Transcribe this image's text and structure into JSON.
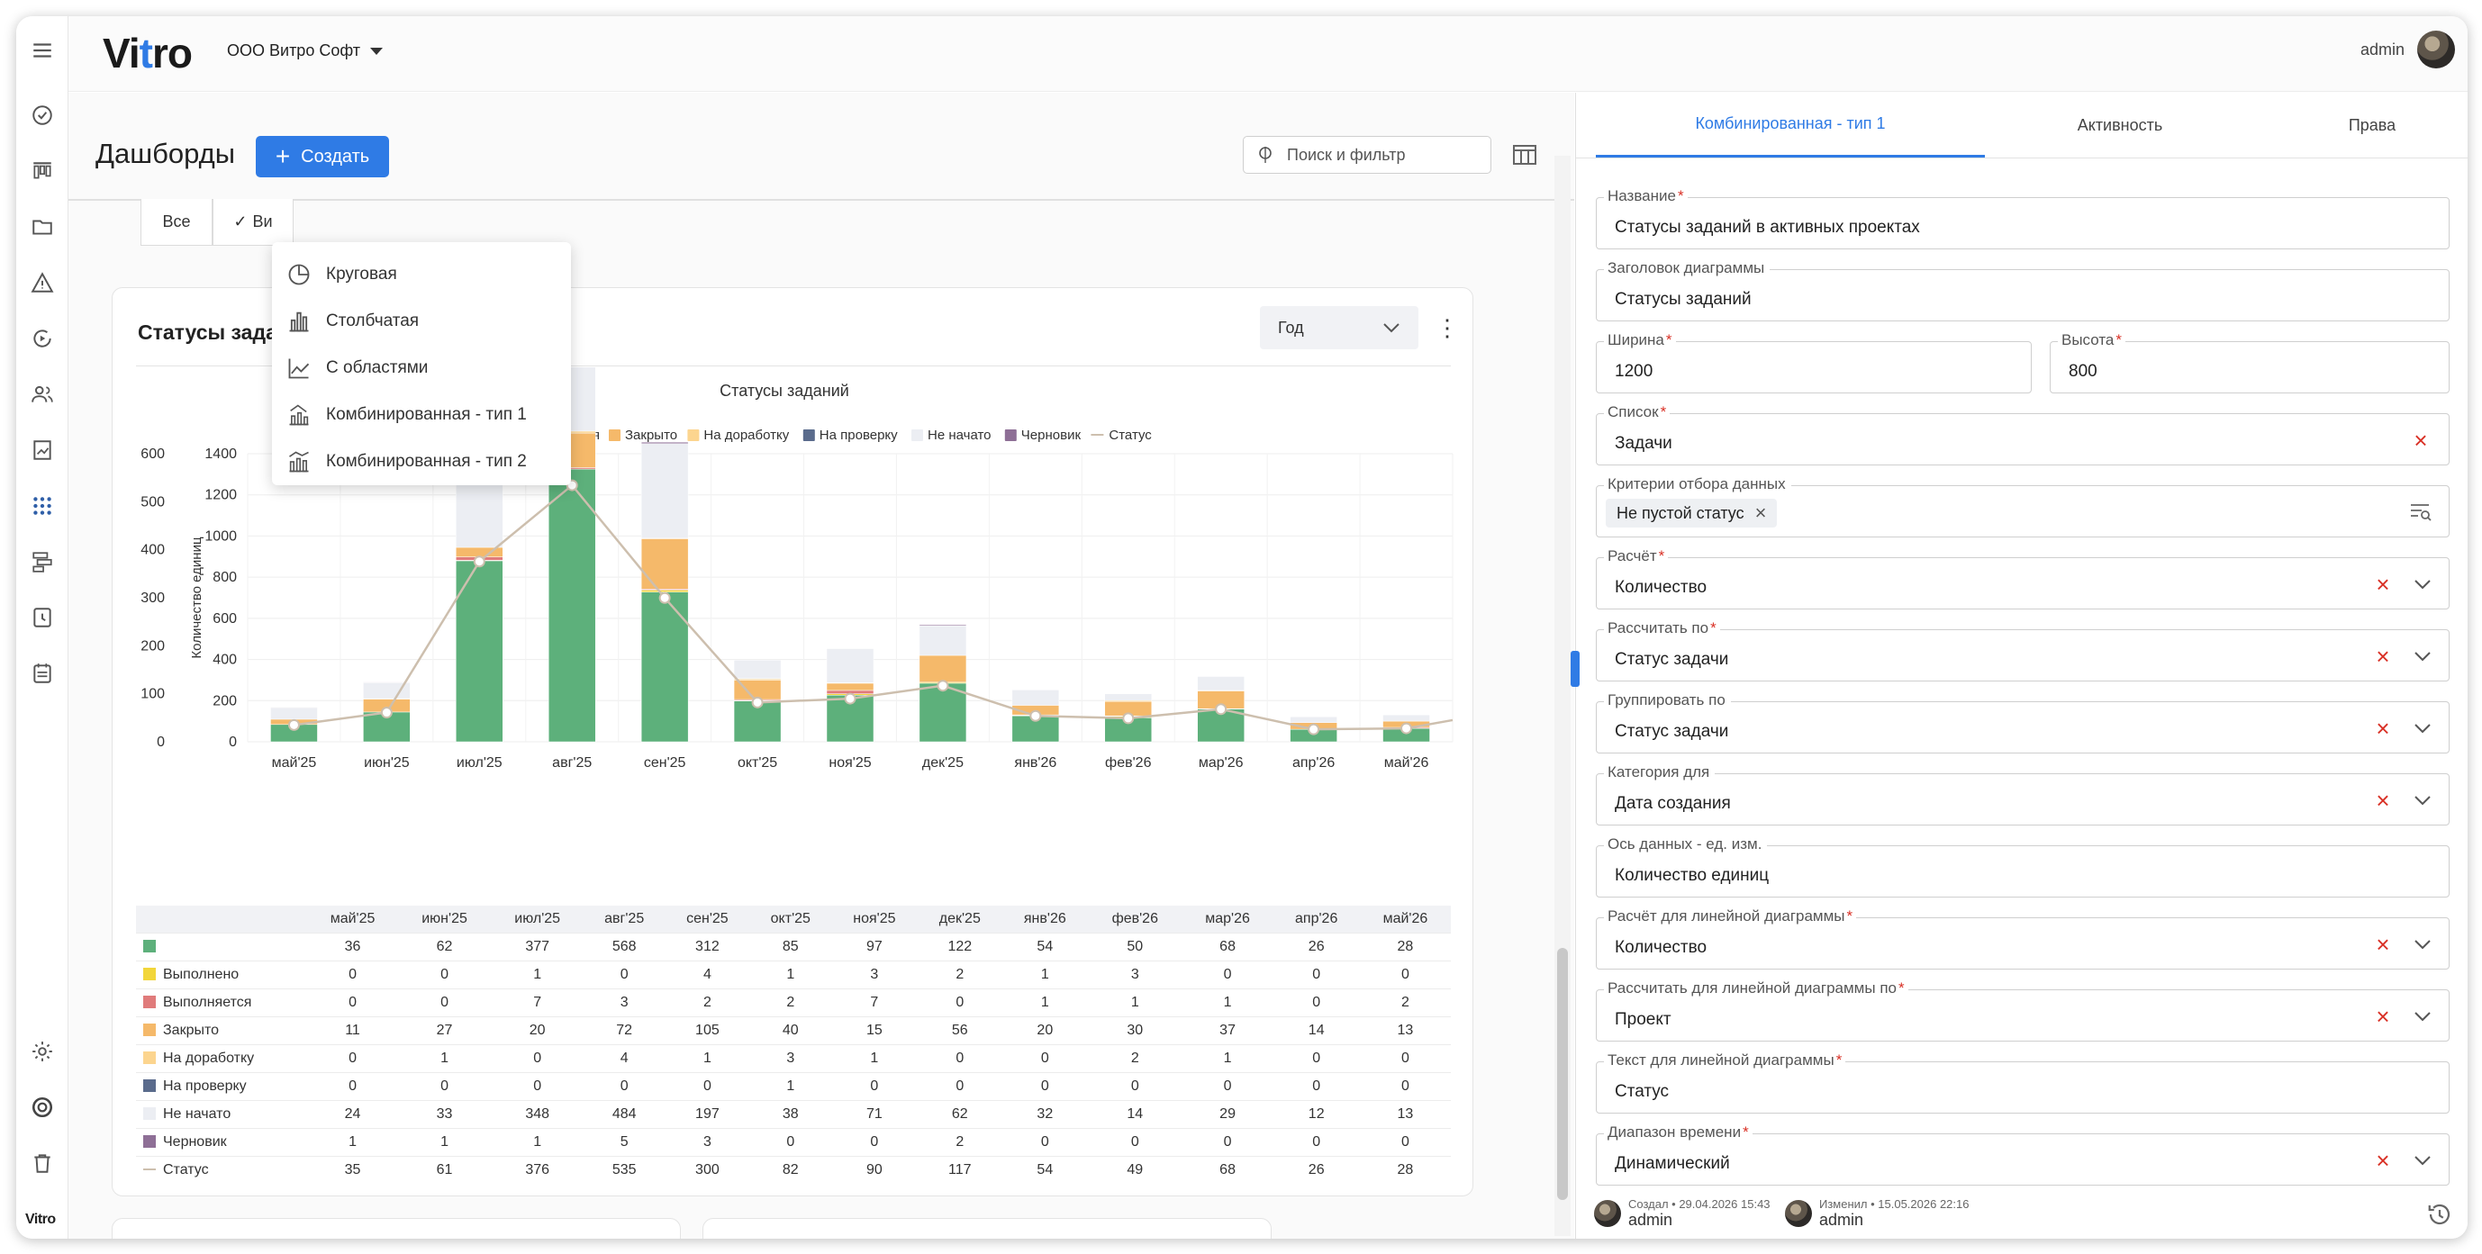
{
  "app": {
    "logo": "Vitro",
    "organization": "ООО Витро Софт",
    "user": "admin",
    "side_brand": "Vitro",
    "accent_color": "#2f7be5"
  },
  "sidebar": {
    "icons": [
      "menu-icon",
      "check-circle-icon",
      "kanban-icon",
      "folder-icon",
      "warning-icon",
      "play-cycle-icon",
      "users-icon",
      "report-icon",
      "apps-grid-icon",
      "workflow-icon",
      "clock-icon",
      "calendar-list-icon",
      "settings-icon",
      "support-icon",
      "trash-icon"
    ]
  },
  "main": {
    "title": "Дашборды",
    "create_label": "Создать",
    "search_placeholder": "Поиск и фильтр",
    "tabs": [
      "Все",
      "Ви"
    ],
    "create_menu": [
      {
        "label": "Круговая",
        "icon": "pie-chart-icon"
      },
      {
        "label": "Столбчатая",
        "icon": "bar-chart-icon"
      },
      {
        "label": "С областями",
        "icon": "area-chart-icon"
      },
      {
        "label": "Комбинированная - тип 1",
        "icon": "combo-chart-icon"
      },
      {
        "label": "Комбинированная - тип 2",
        "icon": "combo-chart-2-icon"
      }
    ]
  },
  "card": {
    "title": "Статусы зада",
    "period": "Год",
    "menu_glyph": "⋮"
  },
  "chart_data": {
    "type": "bar",
    "title": "Статусы заданий",
    "ylabel": "Количество единиц",
    "ylim_left": [
      0,
      1400
    ],
    "ylim_right": [
      0,
      600
    ],
    "yticks_left": [
      "1400",
      "1200",
      "1000",
      "800",
      "600",
      "400",
      "200",
      "0"
    ],
    "yticks_right": [
      "600",
      "500",
      "400",
      "300",
      "200",
      "100",
      "0"
    ],
    "categories": [
      "май'25",
      "июн'25",
      "июл'25",
      "авг'25",
      "сен'25",
      "окт'25",
      "ноя'25",
      "дек'25",
      "янв'26",
      "фев'26",
      "мар'26",
      "апр'26",
      "май'26"
    ],
    "grid": true,
    "legend_position": "top",
    "series": [
      {
        "name": "",
        "color": "#5db07b",
        "values": [
          36,
          62,
          377,
          568,
          312,
          85,
          97,
          122,
          54,
          50,
          68,
          26,
          28
        ]
      },
      {
        "name": "Выполнено",
        "color": "#f2d63a",
        "values": [
          0,
          0,
          1,
          0,
          4,
          1,
          3,
          2,
          1,
          3,
          0,
          0,
          0
        ]
      },
      {
        "name": "Выполняется",
        "color": "#e07b7b",
        "values": [
          0,
          0,
          7,
          3,
          2,
          2,
          7,
          0,
          1,
          1,
          1,
          0,
          2
        ]
      },
      {
        "name": "Закрыто",
        "color": "#f5b96a",
        "values": [
          11,
          27,
          20,
          72,
          105,
          40,
          15,
          56,
          20,
          30,
          37,
          14,
          13
        ]
      },
      {
        "name": "На доработку",
        "color": "#fcd58f",
        "values": [
          0,
          1,
          0,
          4,
          1,
          3,
          1,
          0,
          0,
          2,
          1,
          0,
          0
        ]
      },
      {
        "name": "На проверку",
        "color": "#5a6b8c",
        "values": [
          0,
          0,
          0,
          0,
          0,
          1,
          0,
          0,
          0,
          0,
          0,
          0,
          0
        ]
      },
      {
        "name": "Не начато",
        "color": "#eceef3",
        "values": [
          24,
          33,
          348,
          484,
          197,
          38,
          71,
          62,
          32,
          14,
          29,
          12,
          13
        ]
      },
      {
        "name": "Черновик",
        "color": "#8e6f96",
        "values": [
          1,
          1,
          1,
          5,
          3,
          0,
          0,
          2,
          0,
          0,
          0,
          0,
          0
        ]
      }
    ],
    "line_series": {
      "name": "Статус",
      "color": "#cdbfae",
      "values": [
        35,
        61,
        376,
        535,
        300,
        82,
        90,
        117,
        54,
        49,
        68,
        26,
        28
      ]
    }
  },
  "panel": {
    "tabs": [
      "Комбинированная - тип 1",
      "Активность",
      "Права"
    ],
    "fields": [
      {
        "label": "Название",
        "required": "*",
        "value": "Статусы заданий в активных проектах"
      },
      {
        "label": "Заголовок диаграммы",
        "required": "",
        "value": "Статусы заданий"
      },
      {
        "label": "Ширина",
        "required": "*",
        "value": "1200"
      },
      {
        "label": "Высота",
        "required": "*",
        "value": "800"
      },
      {
        "label": "Список",
        "required": "*",
        "value": "Задачи"
      },
      {
        "label": "Критерии отбора данных",
        "required": "",
        "value": "Не пустой статус"
      },
      {
        "label": "Расчёт",
        "required": "*",
        "value": "Количество"
      },
      {
        "label": "Рассчитать по",
        "required": "*",
        "value": "Статус задачи"
      },
      {
        "label": "Группировать по",
        "required": "",
        "value": "Статус задачи"
      },
      {
        "label": "Категория для",
        "required": "",
        "value": "Дата создания"
      },
      {
        "label": "Ось данных - ед. изм.",
        "required": "",
        "value": "Количество единиц"
      },
      {
        "label": "Расчёт для линейной диаграммы",
        "required": "*",
        "value": "Количество"
      },
      {
        "label": "Рассчитать для линейной диаграммы по",
        "required": "*",
        "value": "Проект"
      },
      {
        "label": "Текст для линейной диаграммы",
        "required": "*",
        "value": "Статус"
      },
      {
        "label": "Диапазон времени",
        "required": "*",
        "value": "Динамический"
      }
    ],
    "footer": {
      "created_label": "Создал • 29.04.2026 15:43",
      "created_by": "admin",
      "modified_label": "Изменил • 15.05.2026 22:16",
      "modified_by": "admin"
    }
  }
}
